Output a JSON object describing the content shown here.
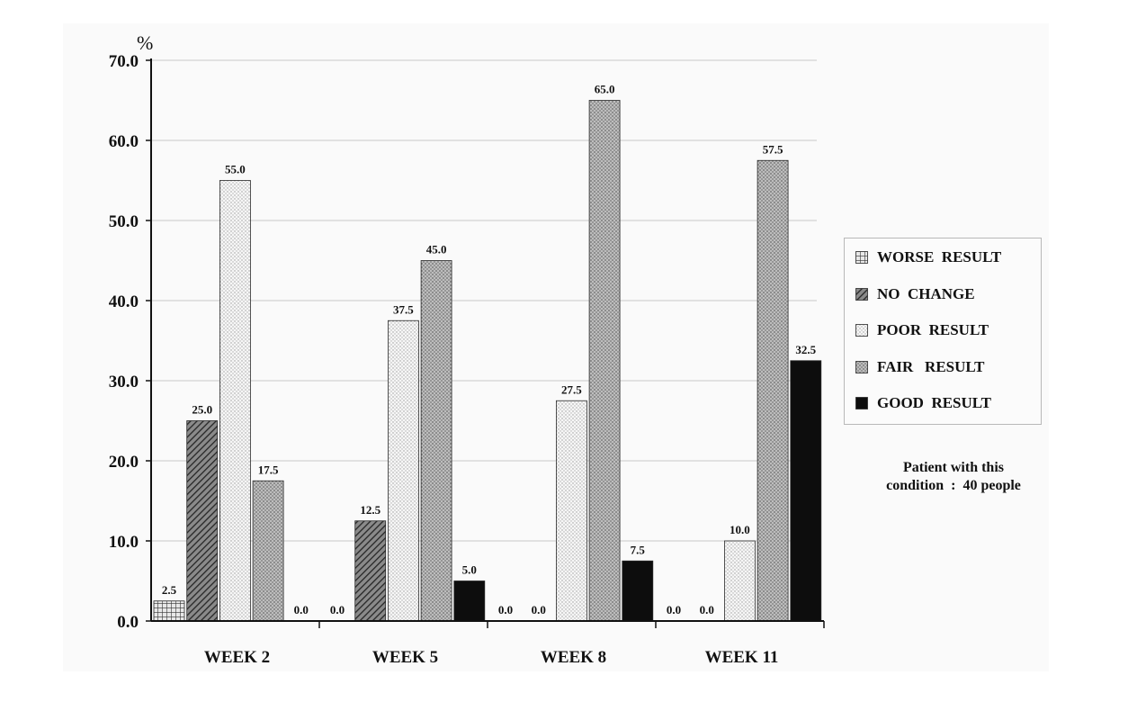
{
  "chart_data": {
    "type": "bar",
    "unit_label": "%",
    "categories": [
      "WEEK 2",
      "WEEK 5",
      "WEEK 8",
      "WEEK 11"
    ],
    "ylim": [
      0,
      70
    ],
    "yticks": [
      "0.0",
      "10.0",
      "20.0",
      "30.0",
      "40.0",
      "50.0",
      "60.0",
      "70.0"
    ],
    "grid": true,
    "legend_position": "right",
    "series": [
      {
        "name": "WORSE  RESULT",
        "values": [
          2.5,
          0.0,
          0.0,
          0.0
        ],
        "labels": [
          "2.5",
          "0.0",
          "0.0",
          "0.0"
        ],
        "pattern": "grid"
      },
      {
        "name": "NO  CHANGE",
        "values": [
          25.0,
          12.5,
          0.0,
          0.0
        ],
        "labels": [
          "25.0",
          "12.5",
          "0.0",
          "0.0"
        ],
        "pattern": "diagonal"
      },
      {
        "name": "POOR  RESULT",
        "values": [
          55.0,
          37.5,
          27.5,
          10.0
        ],
        "labels": [
          "55.0",
          "37.5",
          "27.5",
          "10.0"
        ],
        "pattern": "light-dots"
      },
      {
        "name": "FAIR   RESULT",
        "values": [
          17.5,
          45.0,
          65.0,
          57.5
        ],
        "labels": [
          "17.5",
          "45.0",
          "65.0",
          "57.5"
        ],
        "pattern": "medium-dots"
      },
      {
        "name": "GOOD  RESULT",
        "values": [
          0.0,
          5.0,
          7.5,
          32.5
        ],
        "labels": [
          "0.0",
          "5.0",
          "7.5",
          "32.5"
        ],
        "pattern": "solid"
      }
    ],
    "note": [
      "Patient with this",
      "condition  :  40 people"
    ]
  },
  "colors": {
    "solid": "#0d0d0d",
    "grid_line": "#c8c8c8",
    "axis": "#111111"
  }
}
